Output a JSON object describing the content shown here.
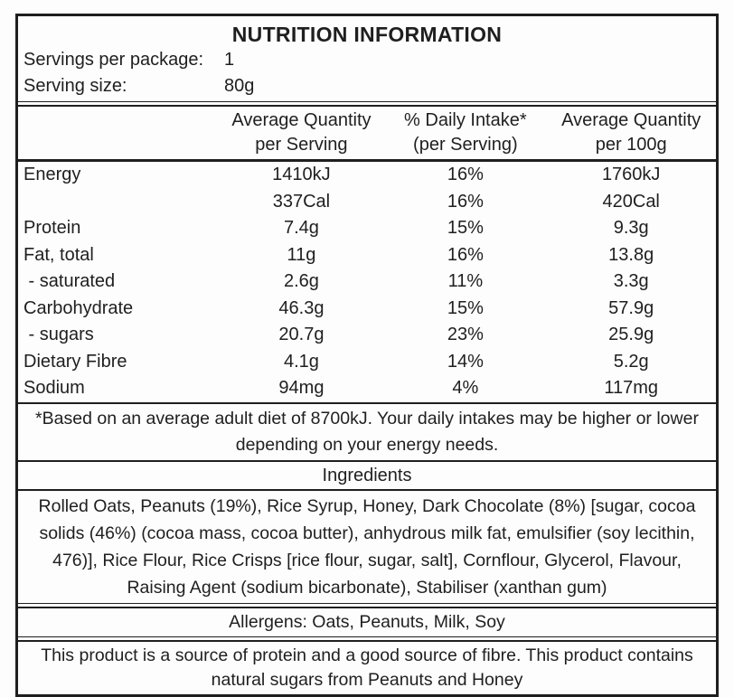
{
  "title": "NUTRITION INFORMATION",
  "serving_info": {
    "servings_per_package_label": "Servings per package:",
    "servings_per_package_value": "1",
    "serving_size_label": "Serving size:",
    "serving_size_value": "80g"
  },
  "table": {
    "column_headers": [
      {
        "line1": "Average Quantity",
        "line2": "per Serving"
      },
      {
        "line1": "% Daily Intake*",
        "line2": "(per Serving)"
      },
      {
        "line1": "Average Quantity",
        "line2": "per 100g"
      }
    ],
    "rows": [
      {
        "nutrient": "Energy",
        "per_serving": "1410kJ",
        "daily_intake": "16%",
        "per_100g": "1760kJ"
      },
      {
        "nutrient": "",
        "per_serving": "337Cal",
        "daily_intake": "16%",
        "per_100g": "420Cal"
      },
      {
        "nutrient": "Protein",
        "per_serving": "7.4g",
        "daily_intake": "15%",
        "per_100g": "9.3g"
      },
      {
        "nutrient": "Fat, total",
        "per_serving": "11g",
        "daily_intake": "16%",
        "per_100g": "13.8g"
      },
      {
        "nutrient": " - saturated",
        "per_serving": "2.6g",
        "daily_intake": "11%",
        "per_100g": "3.3g"
      },
      {
        "nutrient": "Carbohydrate",
        "per_serving": "46.3g",
        "daily_intake": "15%",
        "per_100g": "57.9g"
      },
      {
        "nutrient": " - sugars",
        "per_serving": "20.7g",
        "daily_intake": "23%",
        "per_100g": "25.9g"
      },
      {
        "nutrient": "Dietary Fibre",
        "per_serving": "4.1g",
        "daily_intake": "14%",
        "per_100g": "5.2g"
      },
      {
        "nutrient": "Sodium",
        "per_serving": "94mg",
        "daily_intake": "4%",
        "per_100g": "117mg"
      }
    ]
  },
  "footnote": {
    "line1": "*Based on an average adult diet of 8700kJ. Your daily intakes may be higher or lower",
    "line2": "depending on your energy needs."
  },
  "ingredients": {
    "heading": "Ingredients",
    "line1": "Rolled Oats, Peanuts (19%), Rice Syrup, Honey, Dark Chocolate (8%) [sugar, cocoa",
    "line2": "solids (46%) (cocoa mass, cocoa butter), anhydrous milk fat, emulsifier (soy lecithin,",
    "line3": "476)], Rice Flour, Rice Crisps [rice flour, sugar, salt], Cornflour, Glycerol, Flavour,",
    "line4": "Raising Agent (sodium bicarbonate), Stabiliser (xanthan gum)"
  },
  "allergens": "Allergens: Oats, Peanuts, Milk, Soy",
  "claims": {
    "line1": "This product is a source of protein and a good source of fibre. This product contains",
    "line2": "natural sugars from Peanuts and Honey"
  },
  "colors": {
    "ink": "#1f1f1f",
    "paper": "#fdfdfd"
  }
}
